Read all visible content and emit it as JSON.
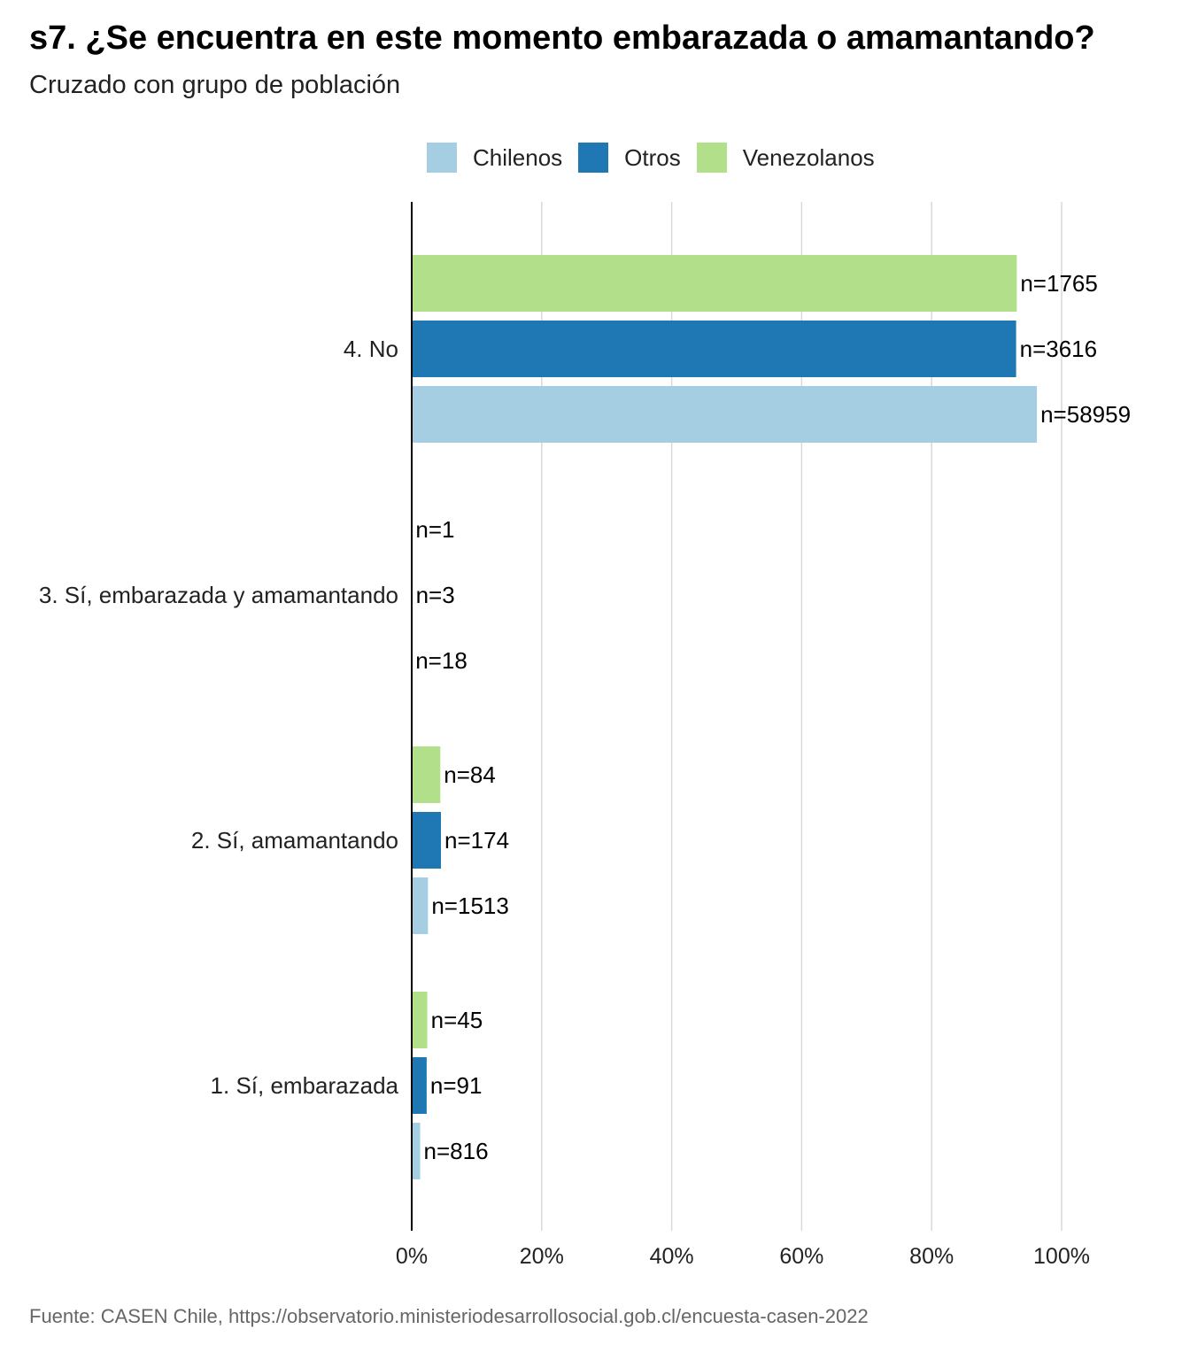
{
  "chart_data": {
    "type": "bar",
    "orientation": "horizontal",
    "title": "s7. ¿Se encuentra en este momento embarazada o amamantando?",
    "subtitle": "Cruzado con grupo de población",
    "caption": "Fuente: CASEN Chile, https://observatorio.ministeriodesarrollosocial.gob.cl/encuesta-casen-2022",
    "categories": [
      "4. No",
      "3. Sí, embarazada y amamantando",
      "2. Sí, amamantando",
      "1. Sí, embarazada"
    ],
    "series": [
      {
        "name": "Venezolanos",
        "color": "#b2df8a",
        "values": [
          93.1,
          0.05,
          4.4,
          2.4
        ],
        "labels": [
          "n=1765",
          "n=1",
          "n=84",
          "n=45"
        ]
      },
      {
        "name": "Otros",
        "color": "#1f78b4",
        "values": [
          93.0,
          0.08,
          4.5,
          2.3
        ],
        "labels": [
          "n=3616",
          "n=3",
          "n=174",
          "n=91"
        ]
      },
      {
        "name": "Chilenos",
        "color": "#a6cee3",
        "values": [
          96.2,
          0.03,
          2.5,
          1.3
        ],
        "labels": [
          "n=58959",
          "n=18",
          "n=1513",
          "n=816"
        ]
      }
    ],
    "legend": [
      "Chilenos",
      "Otros",
      "Venezolanos"
    ],
    "legend_position": "top",
    "xlim": [
      0,
      100
    ],
    "xticks": [
      "0%",
      "20%",
      "40%",
      "60%",
      "80%",
      "100%"
    ],
    "grid": true
  }
}
